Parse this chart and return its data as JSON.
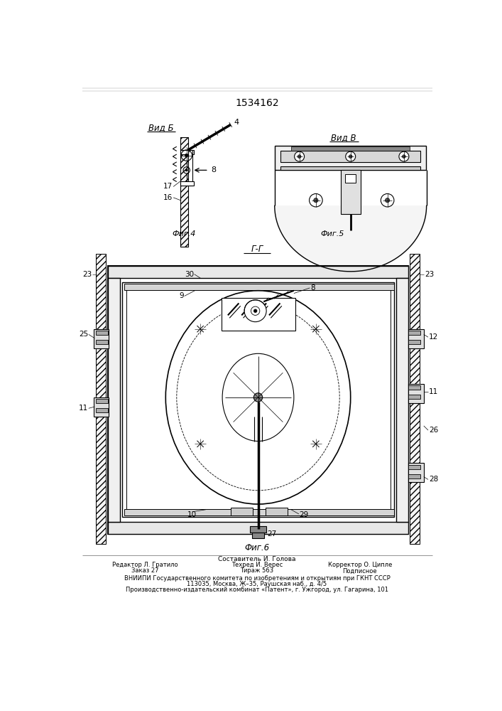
{
  "patent_number": "1534162",
  "background_color": "#ffffff",
  "line_color": "#000000",
  "fig4_label": "Вид Б",
  "fig5_label": "Вид В",
  "fig6_section_label": "Г-Г",
  "fig4_caption": "Фиг.4",
  "fig5_caption": "Фиг.5",
  "fig6_caption": "Фиг.6",
  "footer_lines": [
    "Составитель И. Голова",
    "Редактор Л. Гратило      Техред И. Верес      Корректор О. Ципле",
    "Заказ 27                      Тираж 563                  Подписное",
    "ВНИИПИ Государственного комитета по изобретениям и открытиям при ГКНТ СССР",
    "113035, Москва, Ж–35, Раушская наб., д. 4/5",
    "Производственно-издательский комбинат «Патент», г. Ужгород, ул. Гагарина, 101"
  ]
}
